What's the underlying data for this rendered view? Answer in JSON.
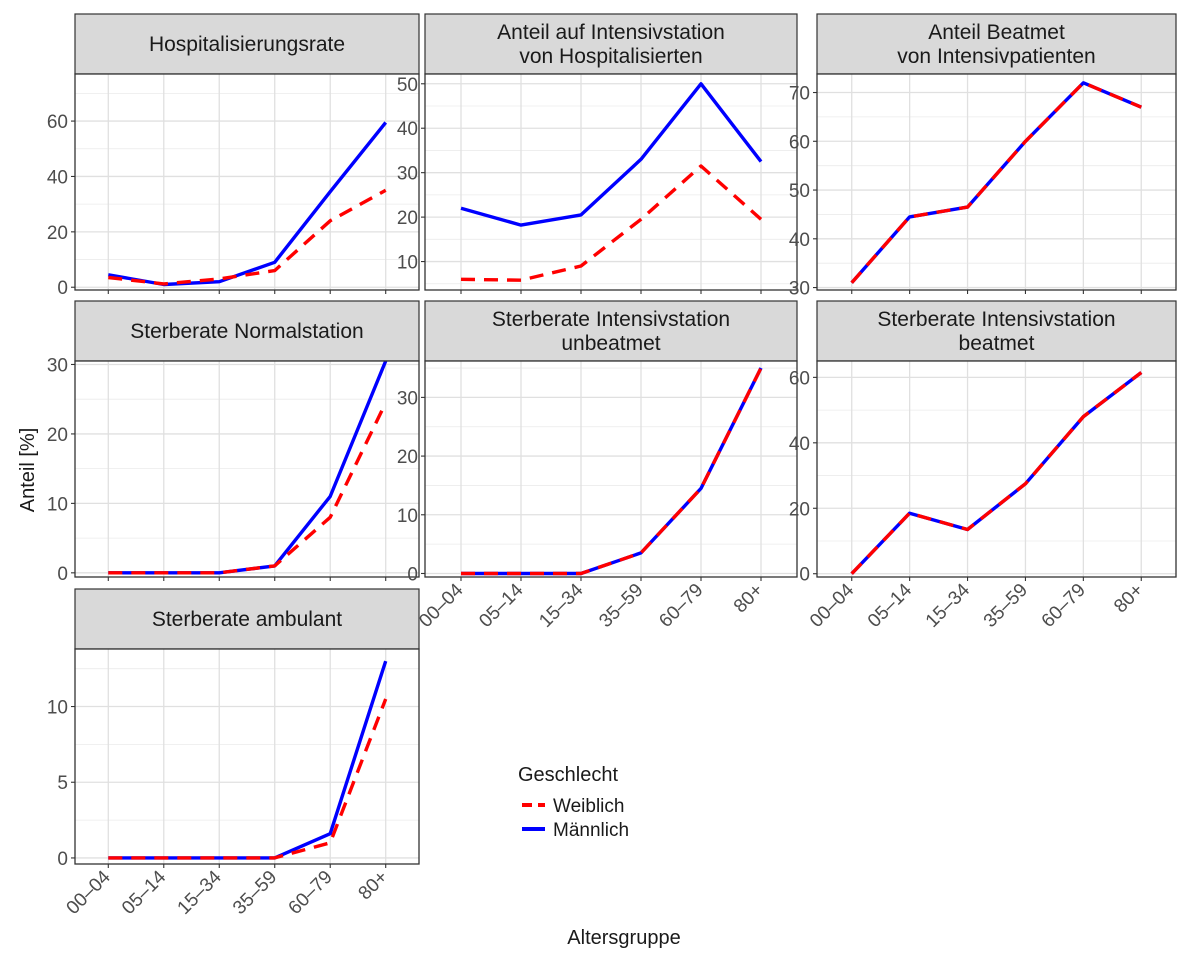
{
  "chart_data": {
    "type": "line",
    "xlabel": "Altersgruppe",
    "ylabel": "Anteil [%]",
    "categories": [
      "00–04",
      "05–14",
      "15–34",
      "35–59",
      "60–79",
      "80+"
    ],
    "grid": true,
    "legend": {
      "title": "Geschlecht",
      "placement": "bottom-center",
      "entries": [
        {
          "name": "Weiblich",
          "color": "#FF0000",
          "dash": "dashed"
        },
        {
          "name": "Männlich",
          "color": "#0000FF",
          "dash": "solid"
        }
      ]
    },
    "panels": [
      {
        "title": [
          "Hospitalisierungsrate"
        ],
        "ylim": [
          -1,
          77
        ],
        "yticks": [
          0,
          20,
          40,
          60
        ],
        "series": [
          {
            "name": "Weiblich",
            "values": [
              3.5,
              1.2,
              3.0,
              6.0,
              24.0,
              35.0
            ]
          },
          {
            "name": "Männlich",
            "values": [
              4.5,
              1.0,
              2.0,
              9.0,
              34.5,
              59.5
            ]
          }
        ]
      },
      {
        "title": [
          "Anteil auf Intensivstation",
          "von Hospitalisierten"
        ],
        "ylim": [
          3.6,
          52.2
        ],
        "yticks": [
          10,
          20,
          30,
          40,
          50
        ],
        "series": [
          {
            "name": "Weiblich",
            "values": [
              6.0,
              5.8,
              9.0,
              19.5,
              31.5,
              19.5
            ]
          },
          {
            "name": "Männlich",
            "values": [
              22.0,
              18.2,
              20.5,
              33.0,
              50.0,
              32.5
            ]
          }
        ]
      },
      {
        "title": [
          "Anteil Beatmet",
          "von Intensivpatienten"
        ],
        "ylim": [
          29.5,
          73.8
        ],
        "yticks": [
          30,
          40,
          50,
          60,
          70
        ],
        "series": [
          {
            "name": "Weiblich",
            "values": [
              31.0,
              44.5,
              46.5,
              60.0,
              72.0,
              67.0
            ]
          },
          {
            "name": "Männlich",
            "values": [
              31.0,
              44.5,
              46.5,
              60.0,
              72.0,
              67.0
            ]
          }
        ]
      },
      {
        "title": [
          "Sterberate Normalstation"
        ],
        "ylim": [
          -0.6,
          30.5
        ],
        "yticks": [
          0,
          10,
          20,
          30
        ],
        "series": [
          {
            "name": "Weiblich",
            "values": [
              0,
              0,
              0,
              1.0,
              8.0,
              24.5
            ]
          },
          {
            "name": "Männlich",
            "values": [
              0,
              0,
              0,
              1.0,
              11.0,
              30.5
            ]
          }
        ]
      },
      {
        "title": [
          "Sterberate Intensivstation",
          "unbeatmet"
        ],
        "ylim": [
          -0.6,
          36.2
        ],
        "yticks": [
          0,
          10,
          20,
          30
        ],
        "series": [
          {
            "name": "Weiblich",
            "values": [
              0,
              0,
              0,
              3.5,
              14.5,
              35.0
            ]
          },
          {
            "name": "Männlich",
            "values": [
              0,
              0,
              0,
              3.5,
              14.5,
              35.0
            ]
          }
        ]
      },
      {
        "title": [
          "Sterberate Intensivstation",
          "beatmet"
        ],
        "ylim": [
          -1,
          65
        ],
        "yticks": [
          0,
          20,
          40,
          60
        ],
        "series": [
          {
            "name": "Weiblich",
            "values": [
              0,
              18.5,
              13.5,
              27.5,
              48.0,
              61.5
            ]
          },
          {
            "name": "Männlich",
            "values": [
              0,
              18.5,
              13.5,
              27.5,
              48.0,
              61.5
            ]
          }
        ]
      },
      {
        "title": [
          "Sterberate ambulant"
        ],
        "ylim": [
          -0.4,
          13.8
        ],
        "yticks": [
          0,
          5,
          10
        ],
        "series": [
          {
            "name": "Weiblich",
            "values": [
              0,
              0,
              0,
              0,
              1.0,
              10.5
            ]
          },
          {
            "name": "Männlich",
            "values": [
              0,
              0,
              0,
              0,
              1.6,
              13.0
            ]
          }
        ]
      }
    ]
  }
}
